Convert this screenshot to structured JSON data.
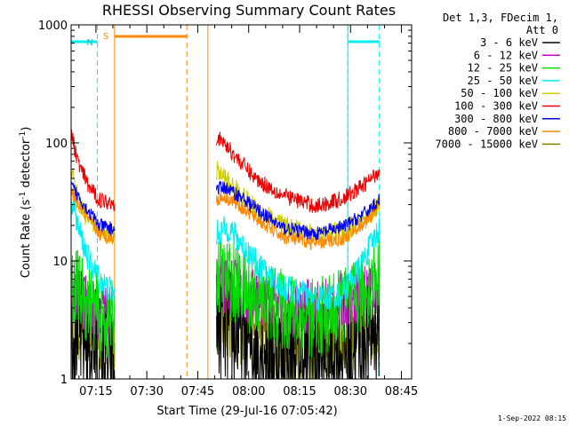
{
  "chart_data": {
    "type": "line",
    "title": "RHESSI Observing Summary Count Rates",
    "xlabel": "Start Time (29-Jul-16 07:05:42)",
    "ylabel_main": "Count Rate (s",
    "ylabel_sup1": "-1",
    "ylabel_mid": " detector",
    "ylabel_sup2": "-1",
    "ylabel_end": ")",
    "y_scale": "log",
    "ylim": [
      1,
      1000
    ],
    "xlim_minutes": [
      427.7,
      528.0
    ],
    "x_ticks": [
      {
        "label": "07:15",
        "minute": 435
      },
      {
        "label": "07:30",
        "minute": 450
      },
      {
        "label": "07:45",
        "minute": 465
      },
      {
        "label": "08:00",
        "minute": 480
      },
      {
        "label": "08:15",
        "minute": 495
      },
      {
        "label": "08:30",
        "minute": 510
      },
      {
        "label": "08:45",
        "minute": 525
      }
    ],
    "y_ticks": [
      {
        "label": "1",
        "value": 1
      },
      {
        "label": "10",
        "value": 10
      },
      {
        "label": "100",
        "value": 100
      },
      {
        "label": "1000",
        "value": 1000
      }
    ],
    "legend_header": [
      "Det 1,3, FDecim 1,",
      "Att 0"
    ],
    "series": [
      {
        "name": "3 - 6 keV",
        "color": "#000000",
        "segments": [
          {
            "x": [
              427.8,
              431,
              435,
              438,
              440.5
            ],
            "y": [
              3.0,
              2.4,
              1.8,
              1.3,
              1.1
            ]
          },
          {
            "x": [
              470.5,
              475,
              480,
              490,
              500,
              510,
              515,
              518.5
            ],
            "y": [
              3.2,
              2.6,
              2.2,
              1.6,
              1.5,
              1.8,
              2.4,
              3.0
            ]
          }
        ]
      },
      {
        "name": "6 - 12 keV",
        "color": "#cc00cc",
        "segments": [
          {
            "x": [
              427.8,
              432,
              436,
              440.5
            ],
            "y": [
              5.2,
              4.4,
              3.8,
              3.4
            ]
          },
          {
            "x": [
              470.5,
              475,
              482,
              490,
              500,
              510,
              518.5
            ],
            "y": [
              6.5,
              6.0,
              4.8,
              4.0,
              4.0,
              5.0,
              6.5
            ]
          }
        ]
      },
      {
        "name": "12 - 25 keV",
        "color": "#00dd00",
        "segments": [
          {
            "x": [
              427.8,
              432,
              436,
              440.5
            ],
            "y": [
              6.8,
              4.6,
              3.4,
              3.0
            ]
          },
          {
            "x": [
              470.5,
              475,
              482,
              490,
              500,
              510,
              518.5
            ],
            "y": [
              7.5,
              6.8,
              5.0,
              3.8,
              3.2,
              4.2,
              7.5
            ]
          }
        ]
      },
      {
        "name": "25 - 50 keV",
        "color": "#00eeee",
        "segments": [
          {
            "x": [
              427.8,
              430,
              433,
              436,
              440.5
            ],
            "y": [
              35,
              18,
              10,
              7,
              5.2
            ]
          },
          {
            "x": [
              470.5,
              474,
              478,
              483,
              490,
              500,
              507,
              512,
              518.5
            ],
            "y": [
              17,
              19,
              14,
              9,
              6,
              4.8,
              5.2,
              8,
              19
            ]
          }
        ]
      },
      {
        "name": "50 - 100 keV",
        "color": "#cccc00",
        "segments": [
          {
            "x": [
              427.8,
              430,
              433,
              436,
              440.5
            ],
            "y": [
              60,
              30,
              22,
              18,
              16
            ]
          },
          {
            "x": [
              470.5,
              473,
              477,
              482,
              490,
              500,
              508,
              514,
              518.5
            ],
            "y": [
              58,
              50,
              38,
              28,
              20,
              16.5,
              18,
              22,
              30
            ]
          }
        ]
      },
      {
        "name": "100 - 300 keV",
        "color": "#ee0000",
        "segments": [
          {
            "x": [
              427.8,
              430,
              433,
              436,
              440.5
            ],
            "y": [
              115,
              65,
              42,
              33,
              31
            ]
          },
          {
            "x": [
              470.5,
              473,
              477,
              482,
              490,
              500,
              508,
              514,
              518.5
            ],
            "y": [
              112,
              98,
              72,
              50,
              36,
              29,
              34,
              44,
              58
            ]
          }
        ]
      },
      {
        "name": "300 - 800 keV",
        "color": "#0000ee",
        "segments": [
          {
            "x": [
              427.8,
              430,
              433,
              436,
              440.5
            ],
            "y": [
              43,
              35,
              26,
              20,
              18.5
            ]
          },
          {
            "x": [
              470.5,
              473,
              477,
              482,
              490,
              500,
              508,
              514,
              518.5
            ],
            "y": [
              41,
              42,
              36,
              28,
              19,
              17,
              19.5,
              25,
              33
            ]
          }
        ]
      },
      {
        "name": "800 - 7000 keV",
        "color": "#ff8800",
        "segments": [
          {
            "x": [
              427.8,
              430,
              433,
              436,
              440.5
            ],
            "y": [
              38,
              30,
              22,
              17,
              15.5
            ]
          },
          {
            "x": [
              470.5,
              473,
              477,
              482,
              490,
              500,
              508,
              514,
              518.5
            ],
            "y": [
              33,
              35,
              30,
              23,
              16,
              14,
              15.5,
              21,
              29
            ]
          }
        ]
      },
      {
        "name": "7000 - 15000 keV",
        "color": "#808000",
        "segments": [
          {
            "x": [
              427.8,
              432,
              436,
              440.5
            ],
            "y": [
              3.4,
              2.8,
              2.3,
              2.2
            ]
          },
          {
            "x": [
              470.5,
              475,
              482,
              490,
              500,
              510,
              518.5
            ],
            "y": [
              3.8,
              3.2,
              2.6,
              2.1,
              2.0,
              2.4,
              3.4
            ]
          }
        ]
      }
    ],
    "annotations": [
      {
        "text": "N",
        "color": "#00cccc",
        "kind": "night"
      },
      {
        "text": "S",
        "color": "#ff8800",
        "kind": "saa"
      }
    ],
    "night_bars": [
      [
        427.8,
        435.4
      ],
      [
        509.2,
        518.5
      ]
    ],
    "night_lines": [
      435.4,
      509.2,
      518.5
    ],
    "night_solid_lines": [
      427.7,
      509.2
    ],
    "saa_bar": [
      440.5,
      461.8
    ],
    "saa_lines_solid": [
      440.5,
      468.0
    ],
    "saa_lines_dashed": [
      461.8
    ],
    "footer_date": "1-Sep-2022 08:15"
  }
}
